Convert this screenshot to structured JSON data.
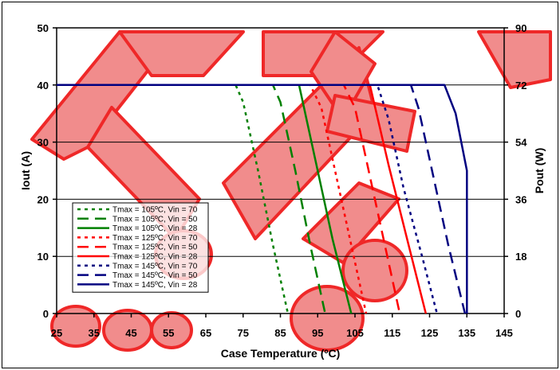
{
  "chart_data": {
    "type": "line",
    "xlabel": "Case Temperature (ºC)",
    "ylabel": "Iout (A)",
    "y2label": "Pout (W)",
    "xlim": [
      25,
      145
    ],
    "ylim": [
      0,
      50
    ],
    "y2lim": [
      0,
      90
    ],
    "xticks": [
      "25",
      "35",
      "45",
      "55",
      "65",
      "75",
      "85",
      "95",
      "105",
      "115",
      "125",
      "135",
      "145"
    ],
    "yticks": [
      "0",
      "10",
      "20",
      "30",
      "40",
      "50"
    ],
    "y2ticks": [
      "0",
      "18",
      "36",
      "54",
      "72",
      "90"
    ],
    "grid": "horizontal",
    "legend_position": "bottom-left",
    "watermark_colors": {
      "fill": "#f08080",
      "outline": "#ee1111"
    },
    "series": [
      {
        "name": "Tmax = 105ºC, Vin = 70",
        "color": "#008000",
        "dash": "dot",
        "x": [
          25,
          73,
          75,
          79,
          83,
          87
        ],
        "y": [
          40,
          40,
          37,
          25,
          12,
          0
        ]
      },
      {
        "name": "Tmax = 105ºC, Vin = 50",
        "color": "#008000",
        "dash": "dash",
        "x": [
          25,
          83,
          85,
          89,
          93,
          97
        ],
        "y": [
          40,
          40,
          37,
          25,
          12,
          0
        ]
      },
      {
        "name": "Tmax = 105ºC, Vin = 28",
        "color": "#008000",
        "dash": "solid",
        "x": [
          25,
          90,
          94,
          99,
          104
        ],
        "y": [
          40,
          40,
          28,
          13,
          0
        ]
      },
      {
        "name": "Tmax = 125ºC, Vin = 70",
        "color": "#ff0000",
        "dash": "dot",
        "x": [
          25,
          93,
          96,
          100,
          104,
          108
        ],
        "y": [
          40,
          40,
          36,
          24,
          12,
          0
        ]
      },
      {
        "name": "Tmax = 125ºC, Vin = 50",
        "color": "#ff0000",
        "dash": "dash",
        "x": [
          25,
          102,
          105,
          109,
          113,
          117
        ],
        "y": [
          40,
          40,
          36,
          24,
          12,
          0
        ]
      },
      {
        "name": "Tmax = 125ºC, Vin = 28",
        "color": "#ff0000",
        "dash": "solid",
        "x": [
          25,
          109,
          114,
          119,
          124
        ],
        "y": [
          40,
          40,
          26,
          13,
          0
        ]
      },
      {
        "name": "Tmax = 145ºC, Vin = 70",
        "color": "#000080",
        "dash": "dot",
        "x": [
          25,
          111,
          114,
          118,
          123,
          127
        ],
        "y": [
          40,
          40,
          34,
          22,
          10,
          0
        ]
      },
      {
        "name": "Tmax = 145ºC, Vin = 50",
        "color": "#000080",
        "dash": "dash",
        "x": [
          25,
          120,
          122,
          126,
          130,
          134.5
        ],
        "y": [
          40,
          40,
          36,
          24,
          12,
          0
        ]
      },
      {
        "name": "Tmax = 145ºC, Vin = 28",
        "color": "#000080",
        "dash": "solid",
        "x": [
          25,
          129,
          132,
          135,
          135
        ],
        "y": [
          40,
          40,
          35,
          25,
          0
        ]
      }
    ]
  }
}
